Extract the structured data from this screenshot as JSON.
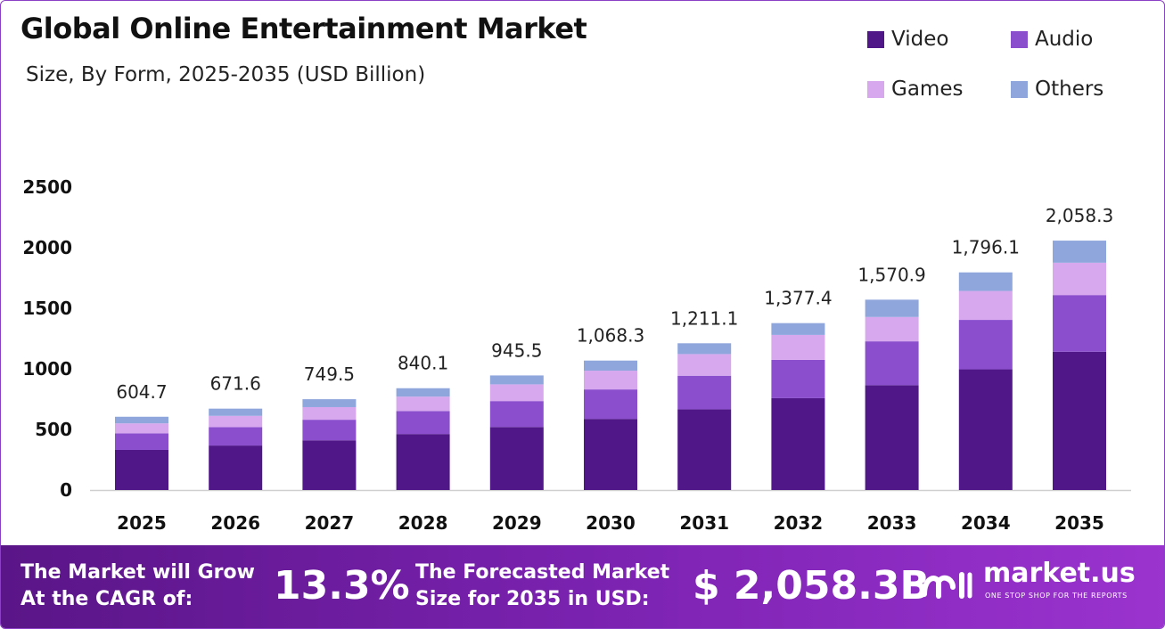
{
  "header": {
    "title": "Global Online Entertainment  Market",
    "subtitle": "Size, By Form, 2025-2035 (USD Billion)"
  },
  "colors": {
    "video": "#4f1787",
    "audio": "#8b4fce",
    "games": "#d7a8ee",
    "others": "#8fa6dd",
    "axis_line": "#cfcfcf",
    "banner_start": "#5a1587",
    "banner_end": "#9b33cf"
  },
  "legend": [
    {
      "label": "Video",
      "color": "#4f1787"
    },
    {
      "label": "Audio",
      "color": "#8b4fce"
    },
    {
      "label": "Games",
      "color": "#d7a8ee"
    },
    {
      "label": "Others",
      "color": "#8fa6dd"
    }
  ],
  "chart_data": {
    "type": "bar",
    "stacked": true,
    "categories": [
      "2025",
      "2026",
      "2027",
      "2028",
      "2029",
      "2030",
      "2031",
      "2032",
      "2033",
      "2034",
      "2035"
    ],
    "series": [
      {
        "name": "Video",
        "values": [
          331,
          367,
          410,
          462,
          520,
          587,
          666,
          758,
          865,
          996,
          1141
        ]
      },
      {
        "name": "Audio",
        "values": [
          137,
          152,
          170,
          190,
          214,
          243,
          277,
          316,
          362,
          408,
          468
        ]
      },
      {
        "name": "Games",
        "values": [
          82,
          93,
          104,
          119,
          138,
          155,
          179,
          206,
          201,
          239,
          267
        ]
      },
      {
        "name": "Others",
        "values": [
          54.7,
          59.6,
          65.5,
          69.1,
          73.5,
          83.3,
          89.1,
          97.4,
          142.9,
          153.1,
          182.3
        ]
      }
    ],
    "totals": [
      604.7,
      671.6,
      749.5,
      840.1,
      945.5,
      1068.3,
      1211.1,
      1377.4,
      1570.9,
      1796.1,
      2058.3
    ],
    "total_labels": [
      "604.7",
      "671.6",
      "749.5",
      "840.1",
      "945.5",
      "1,068.3",
      "1,211.1",
      "1,377.4",
      "1,570.9",
      "1,796.1",
      "2,058.3"
    ],
    "y_ticks": [
      "0",
      "500",
      "1000",
      "1500",
      "2000",
      "2500"
    ],
    "ylim": [
      0,
      2500
    ],
    "grid": false,
    "legend_position": "top-right"
  },
  "banner": {
    "cagr_label_line1": "The Market will Grow",
    "cagr_label_line2": "At the CAGR of:",
    "cagr_value": "13.3%",
    "forecast_label_line1": "The Forecasted Market",
    "forecast_label_line2": "Size for 2035 in USD:",
    "forecast_value": "$ 2,058.3B",
    "brand_name": "market.us",
    "brand_tagline": "ONE STOP SHOP FOR THE REPORTS"
  }
}
